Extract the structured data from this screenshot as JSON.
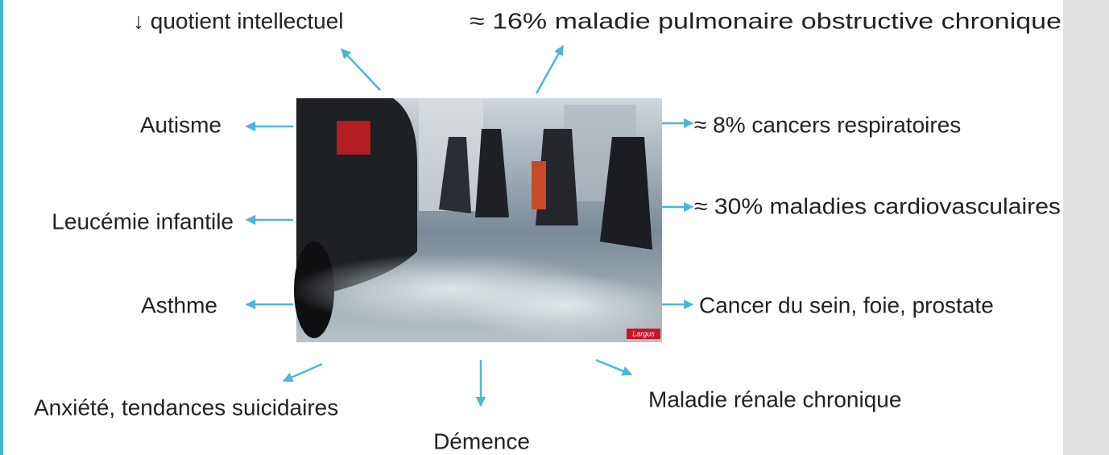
{
  "labels": {
    "top_left": "↓ quotient intellectuel",
    "top_right": "≈ 16% maladie pulmonaire obstructive chronique",
    "left_1": "Autisme",
    "left_2": "Leucémie infantile",
    "left_3": "Asthme",
    "right_1": "≈ 8% cancers respiratoires",
    "right_2": "≈ 30% maladies cardiovasculaires",
    "right_3": "Cancer du sein, foie, prostate",
    "bottom_left": "Anxiété, tendances suicidaires",
    "bottom_center": "Démence",
    "bottom_right": "Maladie rénale chronique"
  },
  "image": {
    "logo": "Largus"
  }
}
